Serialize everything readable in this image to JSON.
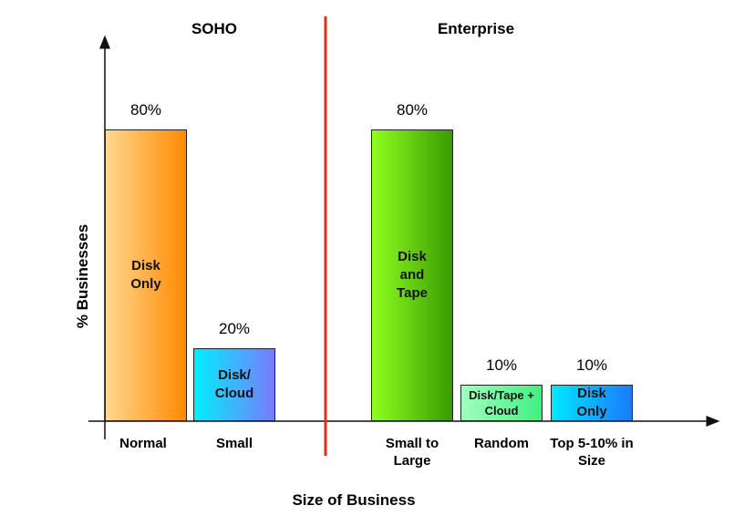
{
  "chart_data": {
    "type": "bar",
    "group_titles": [
      "SOHO",
      "Enterprise"
    ],
    "categories": [
      "Normal",
      "Small",
      "Small to Large",
      "Random",
      "Top 5-10% in Size"
    ],
    "values": [
      80,
      20,
      80,
      10,
      10
    ],
    "value_labels": [
      "80%",
      "20%",
      "80%",
      "10%",
      "10%"
    ],
    "bar_labels": [
      "Disk Only",
      "Disk/ Cloud",
      "Disk and Tape",
      "Disk/Tape + Cloud",
      "Disk Only"
    ],
    "colors": [
      [
        "#ffd890",
        "#ff8a00"
      ],
      [
        "#00f0ff",
        "#7a7aff"
      ],
      [
        "#90ff20",
        "#3a9a00"
      ],
      [
        "#a0ffc0",
        "#40f080"
      ],
      [
        "#00e8ff",
        "#1a7aff"
      ]
    ],
    "ylim": [
      0,
      100
    ],
    "yticks": [],
    "xlabel": "Size of Business",
    "ylabel": "% Businesses"
  }
}
